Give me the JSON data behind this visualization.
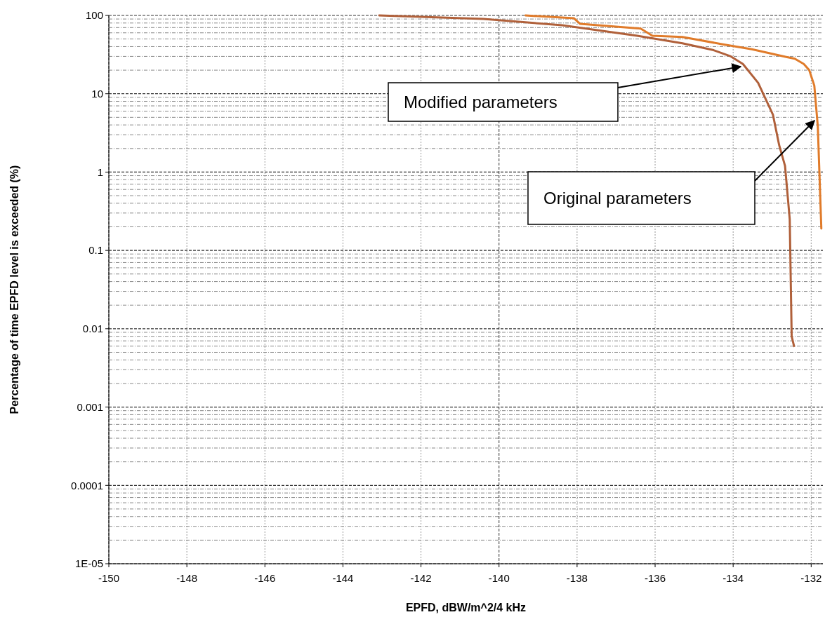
{
  "chart_data": {
    "type": "line",
    "xlabel": "EPFD, dBW/m^2/4 kHz",
    "ylabel": "Percentage of time EPFD level is exceeded (%)",
    "log": "y",
    "grid": true,
    "marker": "none",
    "line_style": "solid",
    "xlim": [
      -150,
      -131.7
    ],
    "xticks": [
      -150,
      -148,
      -146,
      -144,
      -142,
      -140,
      -138,
      -136,
      -134,
      -132
    ],
    "ylim": [
      1e-05,
      100
    ],
    "yticks": [
      100,
      10,
      1,
      0.1,
      0.01,
      0.001,
      0.0001,
      {
        "value": 1e-05,
        "label": "1E-05"
      }
    ],
    "series": [
      {
        "color": "#b0603a",
        "x": [
          -143.07,
          -140.4,
          -138.38,
          -136.46,
          -135.3,
          -134.5,
          -134.06,
          -133.75,
          -133.36,
          -132.98,
          -132.82,
          -132.67,
          -132.55,
          -132.5,
          -132.44
        ],
        "values": [
          100,
          90,
          75,
          55,
          44,
          36,
          30,
          24,
          13.8,
          5.4,
          2.2,
          1.2,
          0.25,
          0.008,
          0.006
        ]
      },
      {
        "color": "#e07b2a",
        "x": [
          -139.32,
          -138.08,
          -137.92,
          -136.37,
          -136.07,
          -135.3,
          -134.29,
          -133.52,
          -132.66,
          -132.42,
          -132.19,
          -132.05,
          -131.92,
          -131.83,
          -131.74
        ],
        "values": [
          100,
          92,
          78,
          68,
          55,
          53,
          43,
          37,
          29.6,
          28,
          24,
          20,
          12.7,
          3.8,
          0.19
        ]
      }
    ],
    "annotations": [
      "Modified parameters",
      "Original parameters"
    ]
  }
}
